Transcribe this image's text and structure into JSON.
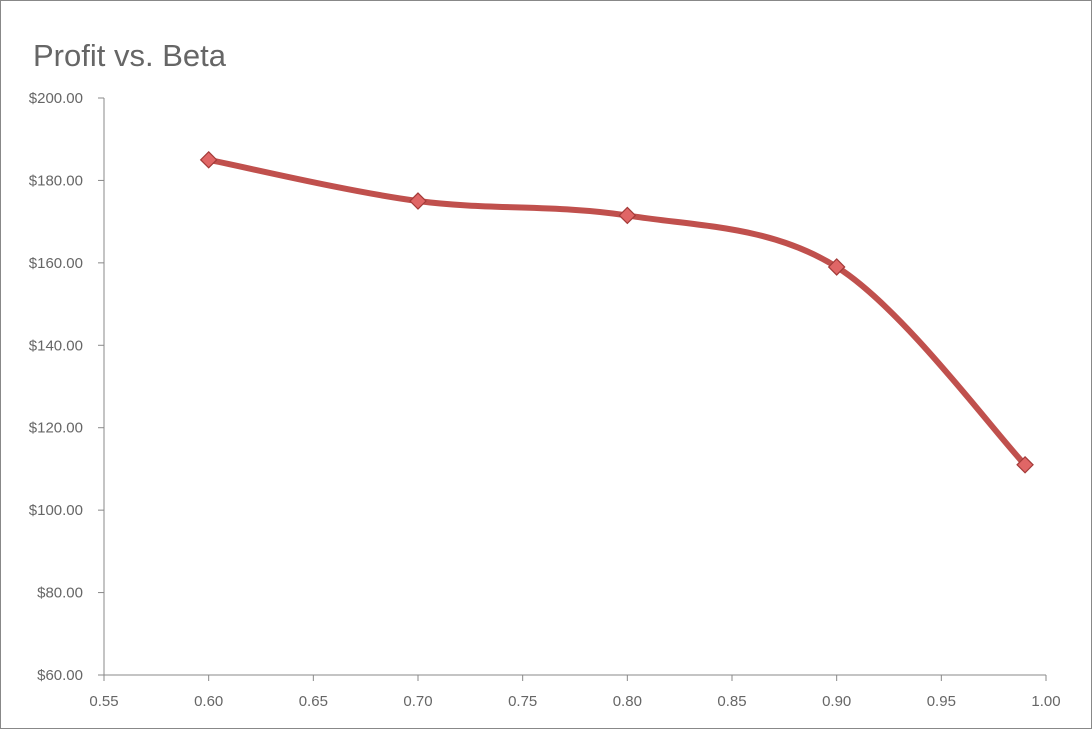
{
  "chart_data": {
    "type": "scatter",
    "title": "Profit vs. Beta",
    "xlabel": "",
    "ylabel": "",
    "xlim": [
      0.55,
      1.0
    ],
    "ylim": [
      60,
      200
    ],
    "x_ticks": [
      "0.55",
      "0.60",
      "0.65",
      "0.70",
      "0.75",
      "0.80",
      "0.85",
      "0.90",
      "0.95",
      "1.00"
    ],
    "x_tick_values": [
      0.55,
      0.6,
      0.65,
      0.7,
      0.75,
      0.8,
      0.85,
      0.9,
      0.95,
      1.0
    ],
    "y_ticks": [
      "$60.00",
      "$80.00",
      "$100.00",
      "$120.00",
      "$140.00",
      "$160.00",
      "$180.00",
      "$200.00"
    ],
    "y_tick_values": [
      60,
      80,
      100,
      120,
      140,
      160,
      180,
      200
    ],
    "grid": false,
    "legend": "none",
    "series": [
      {
        "color": "#C0504D",
        "marker_color": "#E06666",
        "line": "smooth",
        "marker": "diamond",
        "x": [
          0.6,
          0.7,
          0.8,
          0.9,
          0.99
        ],
        "y": [
          185,
          175,
          171.5,
          159,
          111
        ]
      }
    ]
  }
}
